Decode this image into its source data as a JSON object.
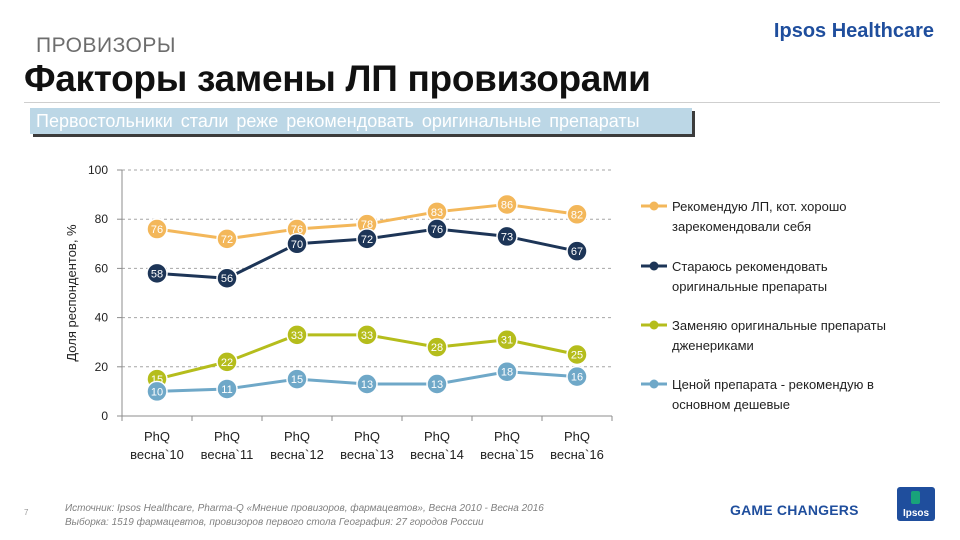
{
  "header": {
    "section": "ПРОВИЗОРЫ",
    "title": "Факторы замены ЛП провизорами",
    "subtitle": "Первостольники стали реже рекомендовать  оригинальные  препараты",
    "brand": "Ipsos Healthcare"
  },
  "chart_data": {
    "type": "line",
    "title": "",
    "xlabel": "",
    "ylabel": "Доля респондентов, %",
    "ylim": [
      0,
      100
    ],
    "yticks": [
      0,
      20,
      40,
      60,
      80,
      100
    ],
    "categories": [
      [
        "PhQ",
        "весна`10"
      ],
      [
        "PhQ",
        "весна`11"
      ],
      [
        "PhQ",
        "весна`12"
      ],
      [
        "PhQ",
        "весна`13"
      ],
      [
        "PhQ",
        "весна`14"
      ],
      [
        "PhQ",
        "весна`15"
      ],
      [
        "PhQ",
        "весна`16"
      ]
    ],
    "grid": "horizontal-dashed",
    "legend": "right",
    "series": [
      {
        "name": [
          "Рекомендую ЛП, кот. хорошо",
          "зарекомендовали себя"
        ],
        "color": "#f3b75a",
        "values": [
          76,
          72,
          76,
          78,
          83,
          86,
          82
        ]
      },
      {
        "name": [
          "Стараюсь рекомендовать",
          "оригинальные препараты"
        ],
        "color": "#1d3557",
        "values": [
          58,
          56,
          70,
          72,
          76,
          73,
          67
        ]
      },
      {
        "name": [
          "Заменяю оригинальные препараты",
          "дженериками"
        ],
        "color": "#b5bd1c",
        "values": [
          15,
          22,
          33,
          33,
          28,
          31,
          25
        ]
      },
      {
        "name": [
          "Ценой препарата  - рекомендую в",
          "основном дешевые"
        ],
        "color": "#6fa8c8",
        "values": [
          10,
          11,
          15,
          13,
          13,
          18,
          16
        ]
      }
    ]
  },
  "footer": {
    "source_line1": "Источник: Ipsos Healthcare, Pharma-Q «Мнение провизоров, фармацевтов», Весна 2010 - Весна 2016",
    "source_line2": "Выборка:  1519 фармацевтов, провизоров первого стола  География: 27 городов России",
    "page_number": "7",
    "slogan": "GAME CHANGERS",
    "logo_text": "Ipsos"
  }
}
